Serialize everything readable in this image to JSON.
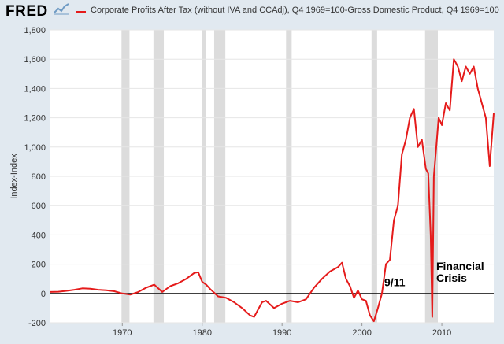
{
  "header": {
    "logo": "FRED",
    "logo_icon": "line-chart-icon",
    "legend_label": "Corporate Profits After Tax (without IVA and CCAdj), Q4 1969=100-Gross Domestic Product, Q4 1969=100"
  },
  "colors": {
    "series": "#e51b1b",
    "recession": "#dcdcdc",
    "background": "#e1e9f0",
    "plot": "#ffffff"
  },
  "chart_data": {
    "type": "line",
    "ylabel": "Index-Index",
    "xlim": [
      1961,
      2016.5
    ],
    "ylim": [
      -200,
      1800
    ],
    "yticks": [
      -200,
      0,
      200,
      400,
      600,
      800,
      1000,
      1200,
      1400,
      1600,
      1800
    ],
    "ytick_labels": [
      "-200",
      "0",
      "200",
      "400",
      "600",
      "800",
      "1,000",
      "1,200",
      "1,400",
      "1,600",
      "1,800"
    ],
    "xticks": [
      1970,
      1980,
      1990,
      2000,
      2010
    ],
    "xtick_labels": [
      "1970",
      "1980",
      "1990",
      "2000",
      "2010"
    ],
    "grid": "horizontal",
    "zero_line": true,
    "recessions": [
      [
        1969.9,
        1970.9
      ],
      [
        1973.9,
        1975.2
      ],
      [
        1980.0,
        1980.5
      ],
      [
        1981.5,
        1982.9
      ],
      [
        1990.5,
        1991.2
      ],
      [
        2001.2,
        2001.9
      ],
      [
        2007.9,
        2009.5
      ]
    ],
    "series": [
      {
        "x": [
          1961.0,
          1962.0,
          1963.0,
          1964.0,
          1965.0,
          1966.0,
          1967.0,
          1968.0,
          1969.0,
          1970.0,
          1971.0,
          1972.0,
          1973.0,
          1974.0,
          1975.0,
          1976.0,
          1977.0,
          1978.0,
          1979.0,
          1979.5,
          1980.0,
          1980.5,
          1981.0,
          1982.0,
          1983.0,
          1984.0,
          1985.0,
          1986.0,
          1986.5,
          1987.0,
          1987.5,
          1988.0,
          1989.0,
          1990.0,
          1991.0,
          1992.0,
          1993.0,
          1994.0,
          1995.0,
          1996.0,
          1997.0,
          1997.5,
          1998.0,
          1998.5,
          1999.0,
          1999.5,
          2000.0,
          2000.5,
          2001.0,
          2001.5,
          2002.0,
          2002.5,
          2003.0,
          2003.5,
          2004.0,
          2004.5,
          2005.0,
          2005.5,
          2006.0,
          2006.5,
          2007.0,
          2007.5,
          2008.0,
          2008.3,
          2008.6,
          2008.8,
          2009.0,
          2009.3,
          2009.6,
          2010.0,
          2010.5,
          2011.0,
          2011.5,
          2012.0,
          2012.5,
          2013.0,
          2013.5,
          2014.0,
          2014.5,
          2015.0,
          2015.5,
          2016.0,
          2016.5
        ],
        "y": [
          10,
          12,
          18,
          25,
          35,
          32,
          25,
          22,
          15,
          0,
          -8,
          10,
          40,
          60,
          10,
          50,
          70,
          100,
          140,
          145,
          80,
          60,
          30,
          -20,
          -30,
          -60,
          -100,
          -150,
          -160,
          -110,
          -60,
          -50,
          -100,
          -70,
          -50,
          -60,
          -40,
          40,
          100,
          150,
          180,
          210,
          100,
          50,
          -30,
          20,
          -40,
          -50,
          -150,
          -190,
          -100,
          0,
          200,
          230,
          500,
          600,
          950,
          1050,
          1200,
          1260,
          1000,
          1050,
          850,
          820,
          400,
          -160,
          800,
          1000,
          1200,
          1150,
          1300,
          1250,
          1600,
          1550,
          1450,
          1550,
          1500,
          1550,
          1400,
          1300,
          1200,
          870,
          1230
        ]
      }
    ],
    "annotations": [
      {
        "text": "9/11",
        "x": 2002.8,
        "y": 50
      },
      {
        "text": "Financial",
        "x": 2009.3,
        "y": 160
      },
      {
        "text": "Crisis",
        "x": 2009.3,
        "y": 80
      }
    ]
  }
}
